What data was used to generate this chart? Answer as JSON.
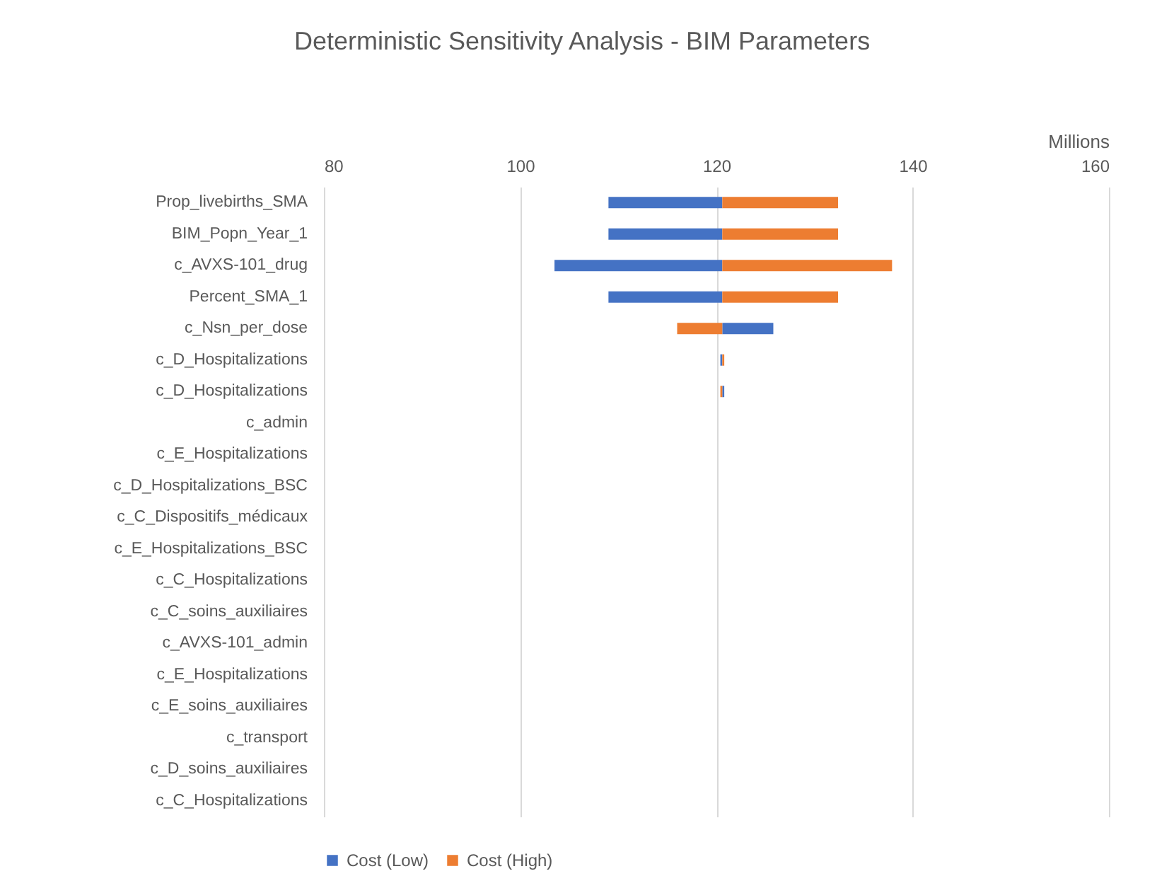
{
  "chart_data": {
    "type": "bar",
    "orientation": "horizontal",
    "title": "Deterministic Sensitivity Analysis - BIM Parameters",
    "xlabel": "Millions",
    "categories": [
      "Prop_livebirths_SMA",
      "BIM_Popn_Year_1",
      "c_AVXS-101_drug",
      "Percent_SMA_1",
      "c_Nsn_per_dose",
      "c_D_Hospitalizations",
      "c_D_Hospitalizations",
      "c_admin",
      "c_E_Hospitalizations",
      "c_D_Hospitalizations_BSC",
      "c_C_Dispositifs_médicaux",
      "c_E_Hospitalizations_BSC",
      "c_C_Hospitalizations",
      "c_C_soins_auxiliaires",
      "c_AVXS-101_admin",
      "c_E_Hospitalizations",
      "c_E_soins_auxiliaires",
      "c_transport",
      "c_D_soins_auxiliaires",
      "c_C_Hospitalizations"
    ],
    "series": [
      {
        "name": "Cost (Low)",
        "color": "#4472c4",
        "base": [
          120.6,
          120.6,
          120.6,
          120.6,
          120.6,
          120.6,
          120.6,
          null,
          null,
          null,
          null,
          null,
          null,
          null,
          null,
          null,
          null,
          null,
          null,
          null
        ],
        "values": [
          -11.6,
          -11.6,
          -17.1,
          -11.6,
          5.2,
          -0.2,
          0.2,
          null,
          null,
          null,
          null,
          null,
          null,
          null,
          null,
          null,
          null,
          null,
          null,
          null
        ]
      },
      {
        "name": "Cost (High)",
        "color": "#ed7d31",
        "base": [
          120.6,
          120.6,
          120.6,
          120.6,
          120.6,
          120.6,
          120.6,
          null,
          null,
          null,
          null,
          null,
          null,
          null,
          null,
          null,
          null,
          null,
          null,
          null
        ],
        "values": [
          11.8,
          11.8,
          17.3,
          11.8,
          -4.6,
          0.2,
          -0.2,
          null,
          null,
          null,
          null,
          null,
          null,
          null,
          null,
          null,
          null,
          null,
          null,
          null
        ]
      }
    ],
    "xlim": [
      80,
      160
    ],
    "xticks": [
      80,
      100,
      120,
      140,
      160
    ],
    "grid": "x",
    "legend": "bottom"
  }
}
